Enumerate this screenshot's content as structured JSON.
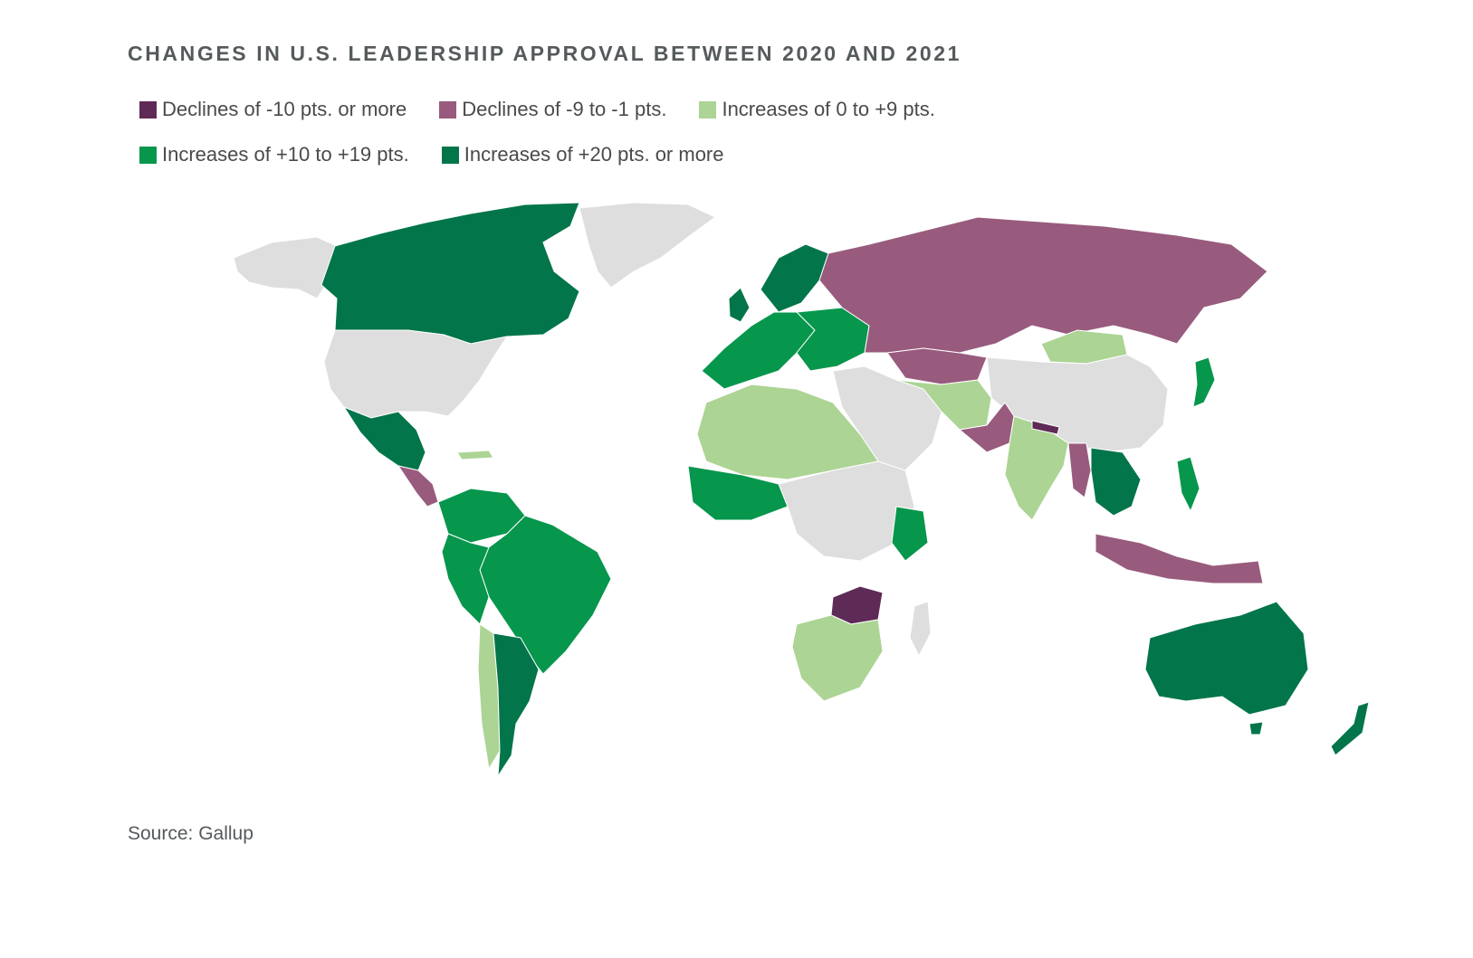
{
  "title": "CHANGES IN U.S. LEADERSHIP APPROVAL BETWEEN 2020 AND 2021",
  "legend": [
    {
      "key": "dec10",
      "label": "Declines of -10 pts. or more",
      "color": "#5e2a56"
    },
    {
      "key": "dec1",
      "label": "Declines of -9 to -1 pts.",
      "color": "#985b7d"
    },
    {
      "key": "inc0",
      "label": "Increases of 0 to +9 pts.",
      "color": "#acd494"
    },
    {
      "key": "inc10",
      "label": "Increases of +10 to +19 pts.",
      "color": "#06964c"
    },
    {
      "key": "inc20",
      "label": "Increases of +20 pts. or more",
      "color": "#02754a"
    }
  ],
  "no_data_color": "#dedede",
  "regions": [
    {
      "name": "Canada",
      "category": "inc20"
    },
    {
      "name": "United States",
      "category": "none"
    },
    {
      "name": "Mexico",
      "category": "inc20"
    },
    {
      "name": "Greenland",
      "category": "none"
    },
    {
      "name": "Alaska",
      "category": "none"
    },
    {
      "name": "Brazil",
      "category": "inc10"
    },
    {
      "name": "Argentina",
      "category": "inc20"
    },
    {
      "name": "Chile",
      "category": "inc0"
    },
    {
      "name": "Russia",
      "category": "dec1"
    },
    {
      "name": "China",
      "category": "none"
    },
    {
      "name": "India",
      "category": "inc0"
    },
    {
      "name": "Australia",
      "category": "inc20"
    },
    {
      "name": "New Zealand",
      "category": "inc20"
    },
    {
      "name": "Japan",
      "category": "inc10"
    },
    {
      "name": "Indonesia",
      "category": "dec1"
    },
    {
      "name": "Zambia",
      "category": "dec10"
    },
    {
      "name": "Nepal",
      "category": "dec10"
    },
    {
      "name": "South Africa",
      "category": "inc0"
    },
    {
      "name": "Mongolia",
      "category": "inc0"
    },
    {
      "name": "Kazakhstan",
      "category": "dec1"
    }
  ],
  "source": "Source: Gallup"
}
